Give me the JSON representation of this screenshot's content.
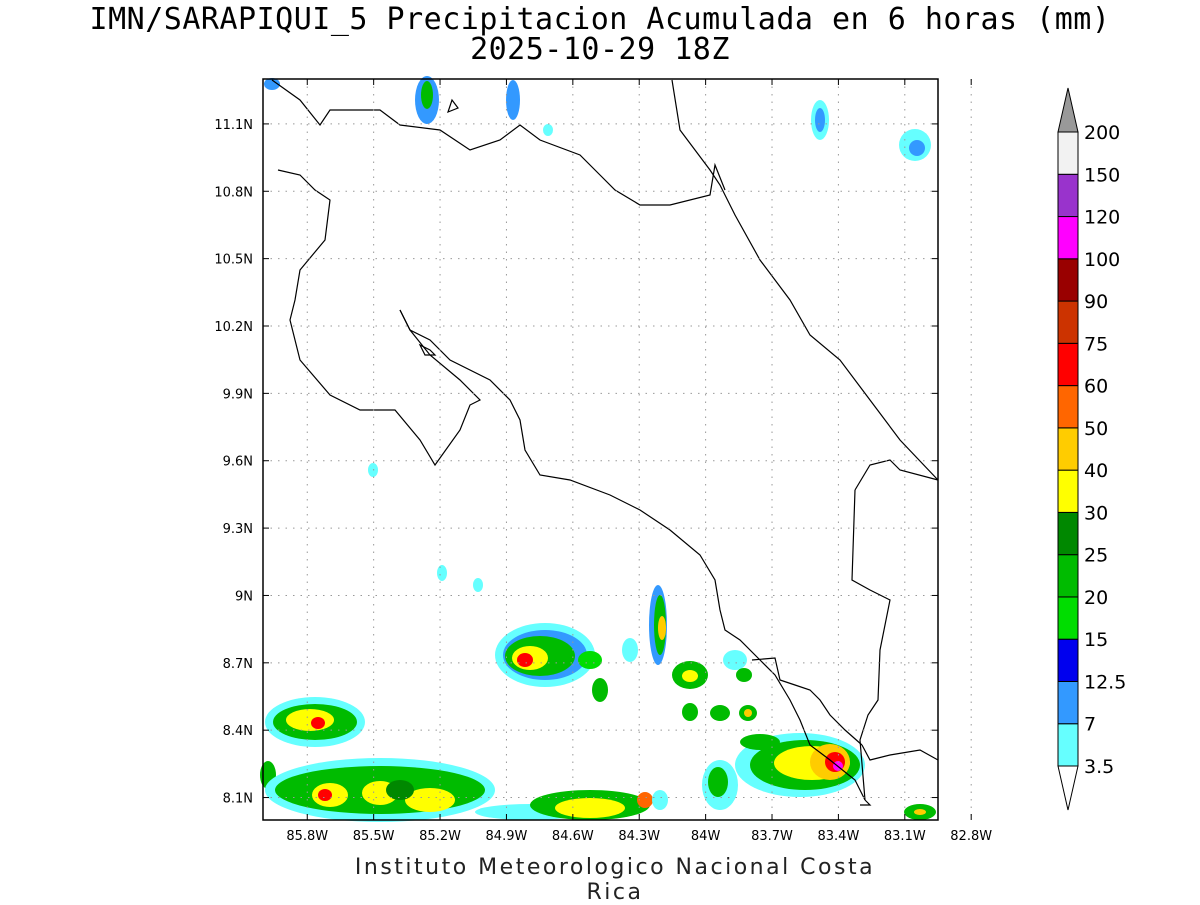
{
  "title": {
    "line1": "IMN/SARAPIQUI_5 Precipitacion Acumulada en 6 horas (mm)",
    "line2": "2025-10-29 18Z"
  },
  "footer": "Instituto Meteorologico Nacional Costa Rica",
  "map": {
    "lon_range": [
      -86.0,
      -82.95
    ],
    "lat_range": [
      8.0,
      11.3
    ],
    "lon_ticks": [
      "85.8W",
      "85.5W",
      "85.2W",
      "84.9W",
      "84.6W",
      "84.3W",
      "84W",
      "83.7W",
      "83.4W",
      "83.1W",
      "82.8W"
    ],
    "lat_ticks": [
      "8.1N",
      "8.4N",
      "8.7N",
      "9N",
      "9.3N",
      "9.6N",
      "9.9N",
      "10.2N",
      "10.5N",
      "10.8N",
      "11.1N"
    ],
    "grid": "dotted"
  },
  "colorbar": {
    "labels": [
      "3.5",
      "7",
      "12.5",
      "15",
      "20",
      "25",
      "30",
      "40",
      "50",
      "60",
      "75",
      "90",
      "100",
      "120",
      "150",
      "200"
    ],
    "colors": [
      "#66ffff",
      "#3399ff",
      "#0000ee",
      "#00dd00",
      "#00bb00",
      "#008800",
      "#ffff00",
      "#ffcc00",
      "#ff6600",
      "#ff0000",
      "#cc3300",
      "#990000",
      "#ff00ff",
      "#9933cc",
      "#f2f2f2"
    ],
    "under_color": "#ffffff",
    "over_color": "#999999"
  }
}
